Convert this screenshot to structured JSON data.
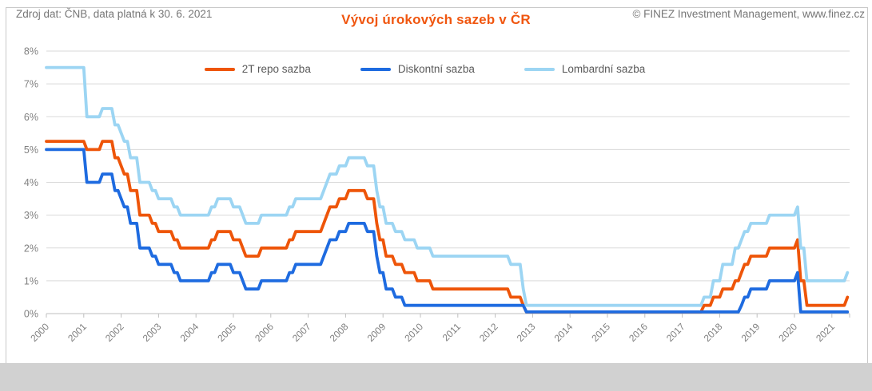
{
  "title": "Vývoj úrokových sazeb v ČR",
  "footer": {
    "left": "Zdroj dat: ČNB, data platná k 30. 6. 2021",
    "right": "© FINEZ Investment Management, www.finez.cz"
  },
  "colors": {
    "title": "#f0560f",
    "repo_line": "#ee5509",
    "discount_line": "#1e6be0",
    "lombard_line": "#9cd5f3",
    "gridline": "#d9d9d9",
    "axis_line": "#bfbfbf",
    "tick_label": "#808080",
    "legend_label": "#595959",
    "footer_band": "#d1d1d1",
    "footer_text": "#767676",
    "border": "#c9c9c9",
    "background": "#ffffff"
  },
  "chart_data": {
    "type": "line",
    "title": "Vývoj úrokových sazeb v ČR",
    "x_unit": "month",
    "x_start": "2000-01",
    "x_end": "2021-06",
    "months_total": 258,
    "x_tick_labels": [
      "2000",
      "2001",
      "2002",
      "2003",
      "2004",
      "2005",
      "2006",
      "2007",
      "2008",
      "2009",
      "2010",
      "2011",
      "2012",
      "2013",
      "2014",
      "2015",
      "2016",
      "2017",
      "2018",
      "2019",
      "2020",
      "2021"
    ],
    "y_tick_labels": [
      "0%",
      "1%",
      "2%",
      "3%",
      "4%",
      "5%",
      "6%",
      "7%",
      "8%"
    ],
    "ylim": [
      0,
      8
    ],
    "grid": "horizontal",
    "legend_position": "top-center",
    "rle_format": "[rate_percent, consecutive_months]",
    "series": [
      {
        "name": "2T repo sazba",
        "color": "#ee5509",
        "values_rle": [
          [
            5.25,
            13
          ],
          [
            5.0,
            5
          ],
          [
            5.25,
            4
          ],
          [
            4.75,
            2
          ],
          [
            4.5,
            1
          ],
          [
            4.25,
            2
          ],
          [
            3.75,
            3
          ],
          [
            3.0,
            4
          ],
          [
            2.75,
            2
          ],
          [
            2.5,
            5
          ],
          [
            2.25,
            2
          ],
          [
            2.0,
            10
          ],
          [
            2.25,
            2
          ],
          [
            2.5,
            5
          ],
          [
            2.25,
            3
          ],
          [
            2.0,
            1
          ],
          [
            1.75,
            5
          ],
          [
            2.0,
            9
          ],
          [
            2.25,
            2
          ],
          [
            2.5,
            9
          ],
          [
            2.75,
            1
          ],
          [
            3.0,
            1
          ],
          [
            3.25,
            3
          ],
          [
            3.5,
            3
          ],
          [
            3.75,
            6
          ],
          [
            3.5,
            3
          ],
          [
            2.75,
            1
          ],
          [
            2.25,
            2
          ],
          [
            1.75,
            3
          ],
          [
            1.5,
            3
          ],
          [
            1.25,
            4
          ],
          [
            1.0,
            5
          ],
          [
            0.75,
            25
          ],
          [
            0.5,
            4
          ],
          [
            0.25,
            1
          ],
          [
            0.05,
            57
          ],
          [
            0.25,
            3
          ],
          [
            0.5,
            3
          ],
          [
            0.75,
            4
          ],
          [
            1.0,
            2
          ],
          [
            1.25,
            1
          ],
          [
            1.5,
            2
          ],
          [
            1.75,
            6
          ],
          [
            2.0,
            9
          ],
          [
            2.25,
            1
          ],
          [
            1.0,
            2
          ],
          [
            0.25,
            13
          ],
          [
            0.5,
            1
          ]
        ]
      },
      {
        "name": "Diskontní sazba",
        "color": "#1e6be0",
        "values_rle": [
          [
            5.0,
            13
          ],
          [
            4.0,
            5
          ],
          [
            4.25,
            4
          ],
          [
            3.75,
            2
          ],
          [
            3.5,
            1
          ],
          [
            3.25,
            2
          ],
          [
            2.75,
            3
          ],
          [
            2.0,
            4
          ],
          [
            1.75,
            2
          ],
          [
            1.5,
            5
          ],
          [
            1.25,
            2
          ],
          [
            1.0,
            10
          ],
          [
            1.25,
            2
          ],
          [
            1.5,
            5
          ],
          [
            1.25,
            3
          ],
          [
            1.0,
            1
          ],
          [
            0.75,
            5
          ],
          [
            1.0,
            9
          ],
          [
            1.25,
            2
          ],
          [
            1.5,
            9
          ],
          [
            1.75,
            1
          ],
          [
            2.0,
            1
          ],
          [
            2.25,
            3
          ],
          [
            2.5,
            3
          ],
          [
            2.75,
            6
          ],
          [
            2.5,
            3
          ],
          [
            1.75,
            1
          ],
          [
            1.25,
            2
          ],
          [
            0.75,
            3
          ],
          [
            0.5,
            3
          ],
          [
            0.25,
            39
          ],
          [
            0.05,
            69
          ],
          [
            0.25,
            1
          ],
          [
            0.5,
            2
          ],
          [
            0.75,
            6
          ],
          [
            1.0,
            9
          ],
          [
            1.25,
            1
          ],
          [
            0.05,
            16
          ]
        ]
      },
      {
        "name": "Lombardní sazba",
        "color": "#9cd5f3",
        "values_rle": [
          [
            7.5,
            13
          ],
          [
            6.0,
            5
          ],
          [
            6.25,
            4
          ],
          [
            5.75,
            2
          ],
          [
            5.5,
            1
          ],
          [
            5.25,
            2
          ],
          [
            4.75,
            3
          ],
          [
            4.0,
            4
          ],
          [
            3.75,
            2
          ],
          [
            3.5,
            5
          ],
          [
            3.25,
            2
          ],
          [
            3.0,
            10
          ],
          [
            3.25,
            2
          ],
          [
            3.5,
            5
          ],
          [
            3.25,
            3
          ],
          [
            3.0,
            1
          ],
          [
            2.75,
            5
          ],
          [
            3.0,
            9
          ],
          [
            3.25,
            2
          ],
          [
            3.5,
            9
          ],
          [
            3.75,
            1
          ],
          [
            4.0,
            1
          ],
          [
            4.25,
            3
          ],
          [
            4.5,
            3
          ],
          [
            4.75,
            6
          ],
          [
            4.5,
            3
          ],
          [
            3.75,
            1
          ],
          [
            3.25,
            2
          ],
          [
            2.75,
            3
          ],
          [
            2.5,
            3
          ],
          [
            2.25,
            4
          ],
          [
            2.0,
            5
          ],
          [
            1.75,
            25
          ],
          [
            1.5,
            4
          ],
          [
            0.75,
            1
          ],
          [
            0.25,
            57
          ],
          [
            0.5,
            3
          ],
          [
            1.0,
            3
          ],
          [
            1.5,
            4
          ],
          [
            2.0,
            2
          ],
          [
            2.25,
            1
          ],
          [
            2.5,
            2
          ],
          [
            2.75,
            6
          ],
          [
            3.0,
            9
          ],
          [
            3.25,
            1
          ],
          [
            2.0,
            2
          ],
          [
            1.0,
            13
          ],
          [
            1.25,
            1
          ]
        ]
      }
    ]
  }
}
